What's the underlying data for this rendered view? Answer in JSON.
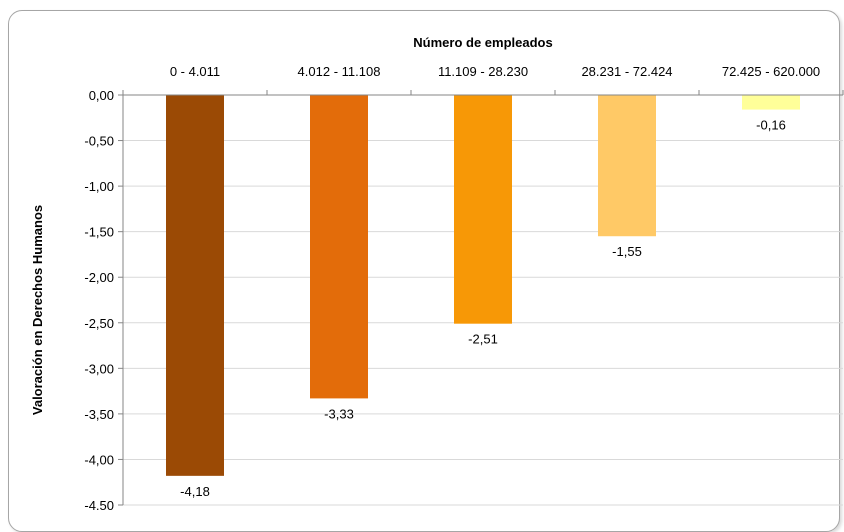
{
  "chart_data": {
    "type": "bar",
    "orientation": "vertical",
    "x_axis_position": "top",
    "xlabel": "Número de empleados",
    "ylabel": "Valoración en Derechos Humanos",
    "categories": [
      "0 - 4.011",
      "4.012 - 11.108",
      "11.109 - 28.230",
      "28.231 - 72.424",
      "72.425 - 620.000"
    ],
    "values": [
      -4.18,
      -3.33,
      -2.51,
      -1.55,
      -0.16
    ],
    "data_labels": [
      "-4,18",
      "-3,33",
      "-2,51",
      "-1,55",
      "-0,16"
    ],
    "colors": [
      "#9b4a05",
      "#e36c0a",
      "#f79806",
      "#ffc966",
      "#ffff99"
    ],
    "ylim": [
      -4.5,
      0
    ],
    "ytick_values": [
      0,
      -0.5,
      -1,
      -1.5,
      -2,
      -2.5,
      -3,
      -3.5,
      -4,
      -4.5
    ],
    "ytick_labels": [
      "0,00",
      "-0,50",
      "-1,00",
      "-1,50",
      "-2,00",
      "-2,50",
      "-3,00",
      "-3,50",
      "-4,00",
      "-4,50"
    ],
    "grid": true,
    "legend": "none"
  }
}
